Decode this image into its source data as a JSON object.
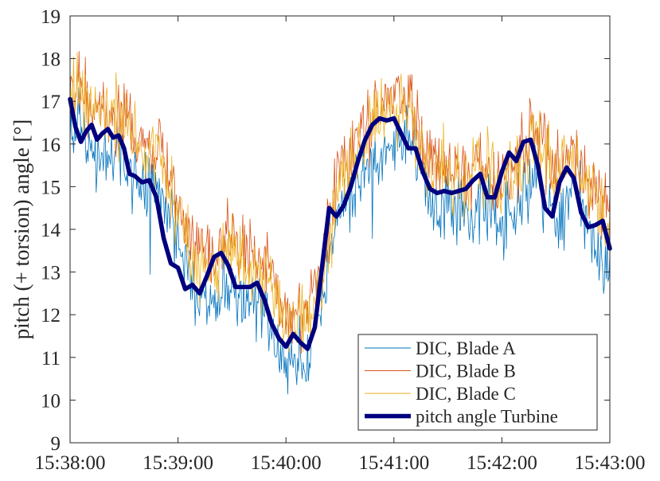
{
  "chart_data": {
    "type": "line",
    "title": "",
    "xlabel": "",
    "ylabel": "pitch (+ torsion) angle [°]",
    "xlim": [
      "15:38:00",
      "15:43:00"
    ],
    "ylim": [
      9,
      19
    ],
    "x_ticks": [
      "15:38:00",
      "15:39:00",
      "15:40:00",
      "15:41:00",
      "15:42:00",
      "15:43:00"
    ],
    "y_ticks": [
      "9",
      "10",
      "11",
      "12",
      "13",
      "14",
      "15",
      "16",
      "17",
      "18",
      "19"
    ],
    "grid": false,
    "legend_position": "bottom-right",
    "series": [
      {
        "name": "DIC, Blade A",
        "color": "#0072BD",
        "style": "thin line, ~0.5 s sampling, noisy",
        "x": [
          "15:38:00",
          "15:38:10",
          "15:38:20",
          "15:38:30",
          "15:38:40",
          "15:38:50",
          "15:39:00",
          "15:39:10",
          "15:39:20",
          "15:39:30",
          "15:39:40",
          "15:39:50",
          "15:40:00",
          "15:40:10",
          "15:40:20",
          "15:40:30",
          "15:40:40",
          "15:40:50",
          "15:41:00",
          "15:41:10",
          "15:41:20",
          "15:41:30",
          "15:41:40",
          "15:41:50",
          "15:42:00",
          "15:42:10",
          "15:42:20",
          "15:42:30",
          "15:42:40",
          "15:42:50",
          "15:43:00"
        ],
        "y": [
          16.6,
          15.9,
          15.7,
          15.6,
          14.9,
          14.8,
          13.9,
          12.3,
          12.2,
          12.7,
          12.1,
          12.1,
          11.0,
          10.8,
          12.3,
          14.6,
          15.0,
          15.6,
          16.2,
          16.0,
          14.6,
          14.4,
          14.4,
          14.6,
          14.1,
          14.7,
          15.3,
          14.2,
          15.0,
          13.7,
          13.0
        ]
      },
      {
        "name": "DIC, Blade B",
        "color": "#D95319",
        "style": "thin line, ~0.5 s sampling, noisy",
        "x": [
          "15:38:00",
          "15:38:10",
          "15:38:20",
          "15:38:30",
          "15:38:40",
          "15:38:50",
          "15:39:00",
          "15:39:10",
          "15:39:20",
          "15:39:30",
          "15:39:40",
          "15:39:50",
          "15:40:00",
          "15:40:10",
          "15:40:20",
          "15:40:30",
          "15:40:40",
          "15:40:50",
          "15:41:00",
          "15:41:10",
          "15:41:20",
          "15:41:30",
          "15:41:40",
          "15:41:50",
          "15:42:00",
          "15:42:10",
          "15:42:20",
          "15:42:30",
          "15:42:40",
          "15:42:50",
          "15:43:00"
        ],
        "y": [
          17.4,
          17.0,
          16.8,
          16.7,
          15.9,
          15.8,
          14.7,
          13.5,
          13.2,
          13.9,
          13.3,
          13.2,
          11.9,
          12.1,
          13.3,
          15.4,
          16.0,
          16.6,
          17.2,
          16.9,
          15.6,
          15.4,
          15.4,
          15.6,
          15.1,
          15.8,
          16.3,
          15.3,
          16.0,
          14.8,
          14.4
        ]
      },
      {
        "name": "DIC, Blade C",
        "color": "#EDB120",
        "style": "thin line, ~0.5 s sampling, noisy",
        "x": [
          "15:38:00",
          "15:38:10",
          "15:38:20",
          "15:38:30",
          "15:38:40",
          "15:38:50",
          "15:39:00",
          "15:39:10",
          "15:39:20",
          "15:39:30",
          "15:39:40",
          "15:39:50",
          "15:40:00",
          "15:40:10",
          "15:40:20",
          "15:40:30",
          "15:40:40",
          "15:40:50",
          "15:41:00",
          "15:41:10",
          "15:41:20",
          "15:41:30",
          "15:41:40",
          "15:41:50",
          "15:42:00",
          "15:42:10",
          "15:42:20",
          "15:42:30",
          "15:42:40",
          "15:42:50",
          "15:43:00"
        ],
        "y": [
          17.2,
          16.9,
          16.7,
          16.6,
          15.8,
          15.7,
          14.5,
          13.2,
          13.0,
          13.6,
          13.0,
          12.9,
          11.7,
          11.8,
          13.0,
          15.2,
          15.8,
          16.5,
          17.0,
          16.7,
          15.4,
          15.2,
          15.2,
          15.4,
          14.9,
          15.6,
          16.1,
          15.1,
          15.8,
          14.6,
          14.1
        ]
      },
      {
        "name": "pitch angle Turbine",
        "color": "#00007F",
        "style": "thick line",
        "x": [
          "15:38:00",
          "15:38:03",
          "15:38:06",
          "15:38:09",
          "15:38:12",
          "15:38:15",
          "15:38:18",
          "15:38:21",
          "15:38:24",
          "15:38:27",
          "15:38:30",
          "15:38:33",
          "15:38:36",
          "15:38:40",
          "15:38:44",
          "15:38:48",
          "15:38:52",
          "15:38:56",
          "15:39:00",
          "15:39:04",
          "15:39:08",
          "15:39:12",
          "15:39:16",
          "15:39:20",
          "15:39:24",
          "15:39:28",
          "15:39:32",
          "15:39:36",
          "15:39:40",
          "15:39:44",
          "15:39:48",
          "15:39:52",
          "15:39:56",
          "15:40:00",
          "15:40:04",
          "15:40:08",
          "15:40:12",
          "15:40:16",
          "15:40:20",
          "15:40:24",
          "15:40:28",
          "15:40:32",
          "15:40:36",
          "15:40:40",
          "15:40:44",
          "15:40:48",
          "15:40:52",
          "15:40:56",
          "15:41:00",
          "15:41:04",
          "15:41:08",
          "15:41:12",
          "15:41:16",
          "15:41:20",
          "15:41:24",
          "15:41:28",
          "15:41:32",
          "15:41:36",
          "15:41:40",
          "15:41:44",
          "15:41:48",
          "15:41:52",
          "15:41:56",
          "15:42:00",
          "15:42:04",
          "15:42:08",
          "15:42:12",
          "15:42:16",
          "15:42:20",
          "15:42:24",
          "15:42:28",
          "15:42:32",
          "15:42:36",
          "15:42:40",
          "15:42:44",
          "15:42:48",
          "15:42:52",
          "15:42:56",
          "15:43:00"
        ],
        "y": [
          17.05,
          16.4,
          16.05,
          16.3,
          16.45,
          16.1,
          16.25,
          16.35,
          16.15,
          16.2,
          15.9,
          15.3,
          15.25,
          15.1,
          15.15,
          14.75,
          13.8,
          13.2,
          13.1,
          12.6,
          12.7,
          12.5,
          12.9,
          13.35,
          13.45,
          13.15,
          12.65,
          12.65,
          12.65,
          12.75,
          12.35,
          11.8,
          11.45,
          11.25,
          11.55,
          11.35,
          11.2,
          11.7,
          13.1,
          14.5,
          14.3,
          14.55,
          15.0,
          15.6,
          16.1,
          16.45,
          16.6,
          16.55,
          16.6,
          16.25,
          15.9,
          15.9,
          15.35,
          14.95,
          14.85,
          14.9,
          14.85,
          14.9,
          14.95,
          15.15,
          15.3,
          14.75,
          14.75,
          15.35,
          15.8,
          15.6,
          16.05,
          16.1,
          15.5,
          14.5,
          14.3,
          15.1,
          15.45,
          15.2,
          14.4,
          14.05,
          14.1,
          14.2,
          13.55
        ]
      }
    ]
  }
}
